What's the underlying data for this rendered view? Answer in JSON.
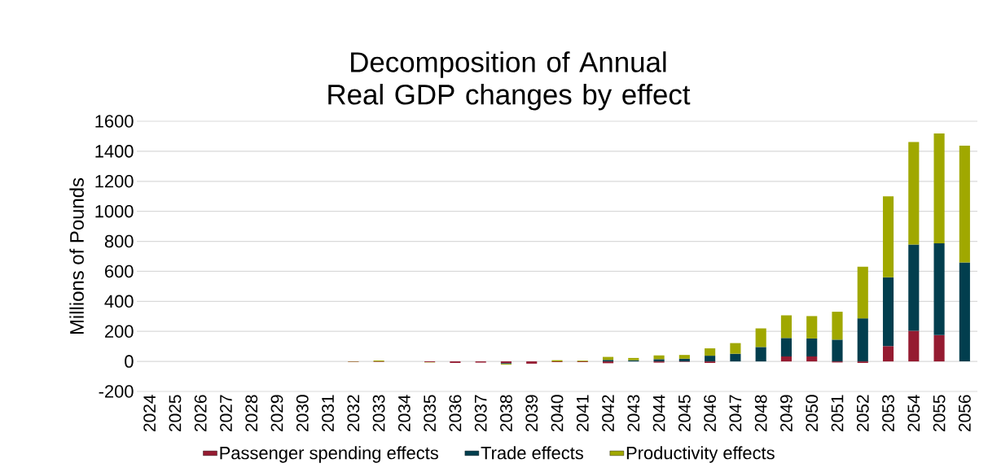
{
  "chart_data": {
    "type": "bar",
    "stacked": true,
    "title": "Decomposition of Annual Real GDP changes by effect",
    "ylabel": "Millions of Pounds",
    "categories": [
      "2024",
      "2025",
      "2026",
      "2027",
      "2028",
      "2029",
      "2030",
      "2031",
      "2032",
      "2033",
      "2034",
      "2035",
      "2036",
      "2037",
      "2038",
      "2039",
      "2040",
      "2041",
      "2042",
      "2043",
      "2044",
      "2045",
      "2046",
      "2047",
      "2048",
      "2049",
      "2050",
      "2051",
      "2052",
      "2053",
      "2054",
      "2055",
      "2056"
    ],
    "series": [
      {
        "name": "Passenger spending effects",
        "color": "#951b31",
        "values": [
          0,
          0,
          0,
          0,
          0,
          0,
          0,
          0,
          -3,
          -3,
          0,
          -5,
          -10,
          -8,
          -12,
          -15,
          -5,
          -5,
          -12,
          0,
          -8,
          -3,
          -10,
          0,
          0,
          33,
          33,
          -7,
          -10,
          102,
          204,
          175,
          0
        ]
      },
      {
        "name": "Trade effects",
        "color": "#023e4e",
        "values": [
          0,
          0,
          0,
          0,
          0,
          0,
          0,
          0,
          0,
          0,
          0,
          0,
          0,
          0,
          -5,
          0,
          0,
          0,
          10,
          8,
          15,
          18,
          38,
          51,
          96,
          123,
          120,
          145,
          287,
          458,
          574,
          612,
          659
        ]
      },
      {
        "name": "Productivity effects",
        "color": "#a0a800",
        "values": [
          0,
          0,
          0,
          0,
          0,
          0,
          0,
          0,
          -2,
          6,
          0,
          -2,
          0,
          0,
          -5,
          0,
          8,
          5,
          20,
          15,
          25,
          25,
          49,
          71,
          124,
          151,
          149,
          186,
          344,
          540,
          684,
          731,
          778
        ]
      }
    ],
    "ylim": [
      -200,
      1600
    ],
    "yticks": [
      -200,
      0,
      200,
      400,
      600,
      800,
      1000,
      1200,
      1400,
      1600
    ],
    "grid": "y",
    "legend": "bottom"
  }
}
